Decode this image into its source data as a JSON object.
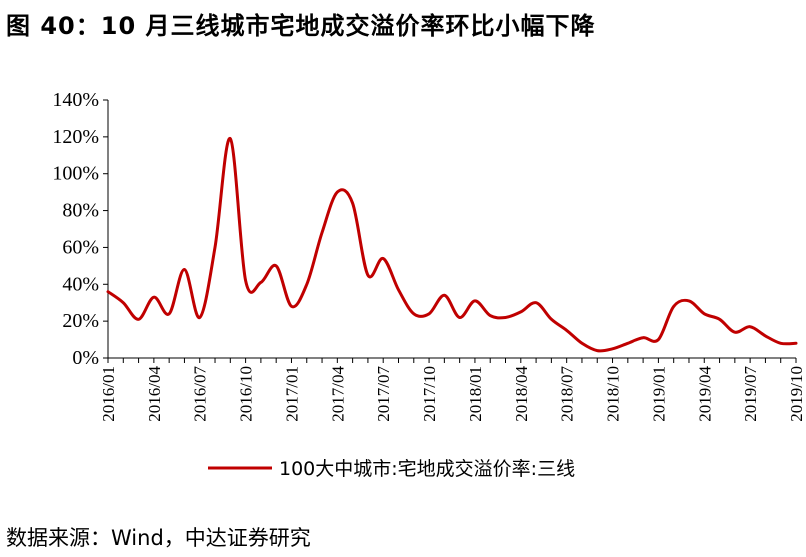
{
  "figure": {
    "title": "图 40：10 月三线城市宅地成交溢价率环比小幅下降",
    "source": "数据来源：Wind，中达证券研究"
  },
  "chart_data": {
    "type": "line",
    "title": "",
    "xlabel": "",
    "ylabel": "",
    "ylim": [
      0,
      140
    ],
    "y_ticks": [
      "0%",
      "20%",
      "40%",
      "60%",
      "80%",
      "100%",
      "120%",
      "140%"
    ],
    "x_tick_labels": [
      "2016/01",
      "2016/04",
      "2016/07",
      "2016/10",
      "2017/01",
      "2017/04",
      "2017/07",
      "2017/10",
      "2018/01",
      "2018/04",
      "2018/07",
      "2018/10",
      "2019/01",
      "2019/04",
      "2019/07",
      "2019/10"
    ],
    "grid": false,
    "legend_position": "bottom",
    "x": [
      "2016/01",
      "2016/02",
      "2016/03",
      "2016/04",
      "2016/05",
      "2016/06",
      "2016/07",
      "2016/08",
      "2016/09",
      "2016/10",
      "2016/11",
      "2016/12",
      "2017/01",
      "2017/02",
      "2017/03",
      "2017/04",
      "2017/05",
      "2017/06",
      "2017/07",
      "2017/08",
      "2017/09",
      "2017/10",
      "2017/11",
      "2017/12",
      "2018/01",
      "2018/02",
      "2018/03",
      "2018/04",
      "2018/05",
      "2018/06",
      "2018/07",
      "2018/08",
      "2018/09",
      "2018/10",
      "2018/11",
      "2018/12",
      "2019/01",
      "2019/02",
      "2019/03",
      "2019/04",
      "2019/05",
      "2019/06",
      "2019/07",
      "2019/08",
      "2019/09",
      "2019/10"
    ],
    "series": [
      {
        "name": "100大中城市:宅地成交溢价率:三线",
        "color": "#c00000",
        "values": [
          36,
          30,
          21,
          33,
          24,
          48,
          22,
          60,
          119,
          42,
          41,
          50,
          28,
          40,
          68,
          90,
          84,
          45,
          54,
          37,
          24,
          24,
          34,
          22,
          31,
          23,
          22,
          25,
          30,
          21,
          15,
          8,
          4,
          5,
          8,
          11,
          10,
          28,
          31,
          24,
          21,
          14,
          17,
          12,
          8,
          8
        ]
      }
    ]
  }
}
